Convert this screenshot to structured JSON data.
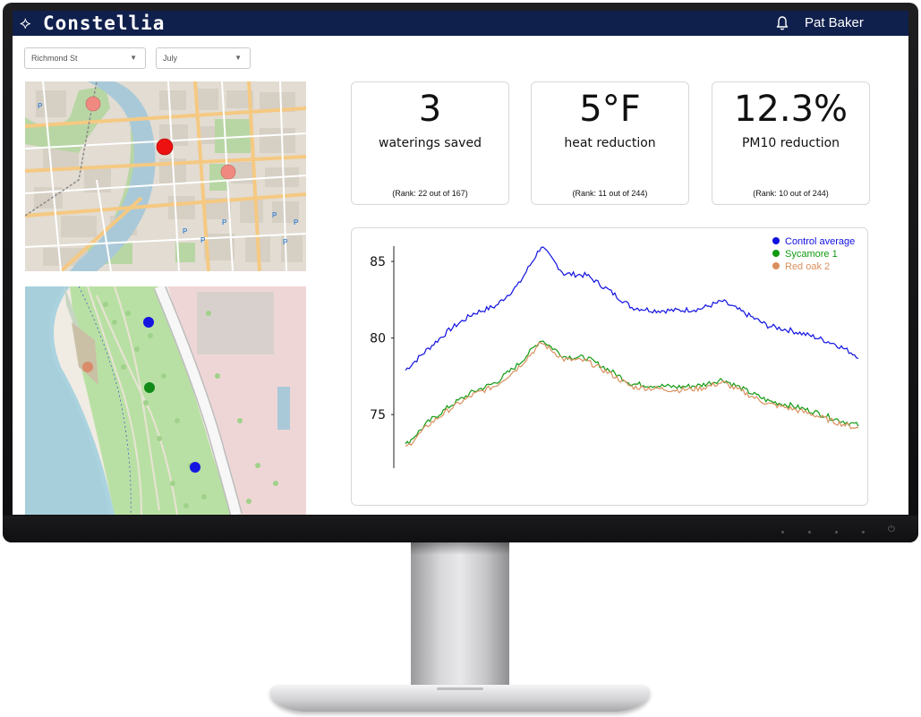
{
  "app": {
    "logo_icon": "diamond-logo-icon",
    "logo_text": "Constellia",
    "user_name": "Pat Baker",
    "header_color": "#10204d"
  },
  "filters": {
    "location": {
      "selected": "Richmond St"
    },
    "month": {
      "selected": "July"
    }
  },
  "maps": [
    {
      "name": "downtown-map",
      "markers": [
        {
          "color": "#f08a80"
        },
        {
          "color": "#ee1111"
        },
        {
          "color": "#f08a80"
        }
      ]
    },
    {
      "name": "riverside-map",
      "markers": [
        {
          "color": "#1515e0"
        },
        {
          "color": "#d98c6a"
        },
        {
          "color": "#128a18"
        },
        {
          "color": "#1515e0"
        }
      ]
    }
  ],
  "kpis": [
    {
      "value": "3",
      "label": "waterings saved",
      "rank": "(Rank: 22 out of 167)"
    },
    {
      "value": "5°F",
      "label": "heat reduction",
      "rank": "(Rank: 11 out of 244)"
    },
    {
      "value": "12.3%",
      "label": "PM10 reduction",
      "rank": "(Rank: 10 out of 244)"
    }
  ],
  "chart_data": {
    "type": "line",
    "title": "",
    "xlabel": "",
    "ylabel": "",
    "ylim": [
      71.5,
      86
    ],
    "yticks": [
      "75",
      "80",
      "85"
    ],
    "ytick_values": [
      75,
      80,
      85
    ],
    "grid": false,
    "legend_position": "top-right",
    "x": [
      0,
      5,
      10,
      15,
      20,
      25,
      30,
      35,
      40,
      45,
      50,
      55,
      60,
      65,
      70,
      75,
      80,
      85,
      90,
      95,
      100
    ],
    "series": [
      {
        "name": "Control average",
        "color": "#1010e0",
        "values": [
          77.9,
          79.3,
          80.6,
          81.6,
          82.1,
          83.5,
          86.0,
          84.2,
          84.1,
          83.1,
          82.0,
          81.8,
          81.8,
          81.9,
          82.4,
          81.6,
          80.8,
          80.5,
          80.1,
          79.6,
          78.8
        ]
      },
      {
        "name": "Sycamore 1",
        "color": "#119a11",
        "values": [
          73.0,
          74.5,
          75.6,
          76.5,
          77.1,
          78.3,
          79.9,
          78.8,
          78.7,
          77.9,
          77.0,
          76.9,
          76.8,
          76.9,
          77.3,
          76.6,
          75.9,
          75.6,
          75.2,
          74.7,
          74.3
        ]
      },
      {
        "name": "Red oak 2",
        "color": "#d9905e",
        "values": [
          72.8,
          74.3,
          75.4,
          76.3,
          76.9,
          78.1,
          79.7,
          78.6,
          78.5,
          77.7,
          76.8,
          76.7,
          76.6,
          76.7,
          77.1,
          76.4,
          75.7,
          75.4,
          75.0,
          74.5,
          74.1
        ]
      }
    ]
  }
}
